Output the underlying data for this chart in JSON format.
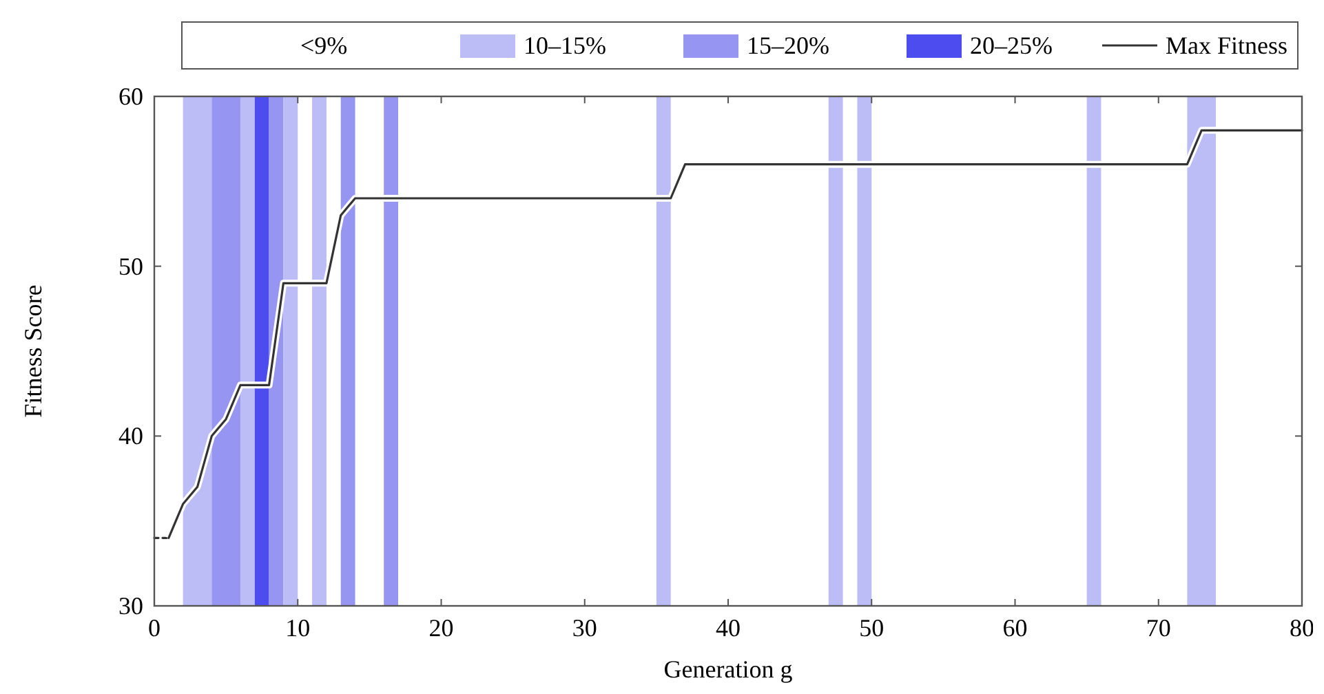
{
  "chart_data": {
    "type": "line",
    "xlabel": "Generation g",
    "ylabel": "Fitness Score",
    "legend_title": "<9%",
    "xlim": [
      0,
      80
    ],
    "ylim": [
      30,
      60
    ],
    "xticks": [
      0,
      10,
      20,
      30,
      40,
      50,
      60,
      70,
      80
    ],
    "yticks": [
      30,
      40,
      50,
      60
    ],
    "grid": false,
    "legend": "top",
    "bands": [
      {
        "axis": "x",
        "from": 2,
        "to": 4,
        "label": "10–15%",
        "color": "#bcbcf6"
      },
      {
        "axis": "x",
        "from": 4,
        "to": 6,
        "label": "15–20%",
        "color": "#9696f2"
      },
      {
        "axis": "x",
        "from": 6,
        "to": 7,
        "color": "#bcbcf6"
      },
      {
        "axis": "x",
        "from": 7,
        "to": 8,
        "label": "20–25%",
        "color": "#4d4def"
      },
      {
        "axis": "x",
        "from": 8,
        "to": 9,
        "color": "#9696f2"
      },
      {
        "axis": "x",
        "from": 9,
        "to": 10,
        "color": "#bcbcf6"
      },
      {
        "axis": "x",
        "from": 11,
        "to": 12,
        "color": "#bcbcf6"
      },
      {
        "axis": "x",
        "from": 13,
        "to": 14,
        "color": "#9696f2"
      },
      {
        "axis": "x",
        "from": 16,
        "to": 17,
        "color": "#9696f2"
      },
      {
        "axis": "x",
        "from": 35,
        "to": 36,
        "color": "#bcbcf6"
      },
      {
        "axis": "x",
        "from": 47,
        "to": 48,
        "color": "#bcbcf6"
      },
      {
        "axis": "x",
        "from": 49,
        "to": 50,
        "color": "#bcbcf6"
      },
      {
        "axis": "x",
        "from": 65,
        "to": 66,
        "color": "#bcbcf6"
      },
      {
        "axis": "x",
        "from": 72,
        "to": 74,
        "color": "#bcbcf6"
      }
    ],
    "series": [
      {
        "color": "#333333",
        "line_style": "dashed",
        "x": [
          0,
          1
        ],
        "values": [
          34,
          34
        ]
      },
      {
        "name": "Max Fitness",
        "color": "#333333",
        "line_style": "solid",
        "x": [
          1,
          2,
          3,
          4,
          5,
          6,
          8,
          9,
          12,
          13,
          14,
          36,
          37,
          72,
          73,
          80
        ],
        "values": [
          34,
          36,
          37,
          40,
          41,
          43,
          43,
          49,
          49,
          53,
          54,
          54,
          56,
          56,
          58,
          58
        ]
      }
    ]
  }
}
